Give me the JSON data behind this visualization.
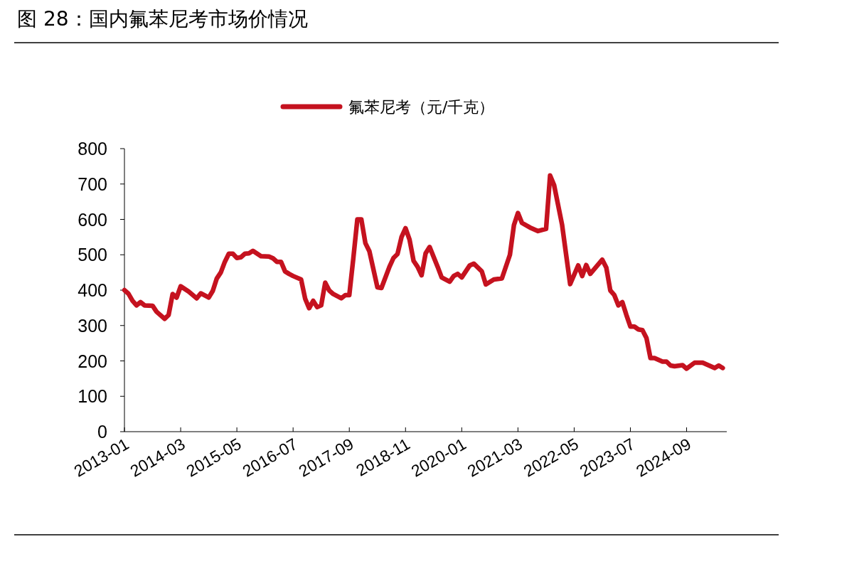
{
  "chart_data": {
    "type": "line",
    "title": "图 28：国内氟苯尼考市场价情况",
    "x": [
      "2013-01",
      "2013-02",
      "2013-03",
      "2013-04",
      "2013-05",
      "2013-06",
      "2013-08",
      "2013-09",
      "2013-11",
      "2013-12",
      "2014-01",
      "2014-02",
      "2014-03",
      "2014-05",
      "2014-07",
      "2014-08",
      "2014-10",
      "2014-11",
      "2014-12",
      "2015-01",
      "2015-02",
      "2015-03",
      "2015-04",
      "2015-05",
      "2015-06",
      "2015-07",
      "2015-08",
      "2015-09",
      "2015-11",
      "2016-01",
      "2016-02",
      "2016-03",
      "2016-04",
      "2016-05",
      "2016-06",
      "2016-07",
      "2016-09",
      "2016-10",
      "2016-11",
      "2016-12",
      "2017-01",
      "2017-02",
      "2017-03",
      "2017-04",
      "2017-05",
      "2017-07",
      "2017-08",
      "2017-09",
      "2017-10",
      "2017-11",
      "2017-12",
      "2018-01",
      "2018-02",
      "2018-04",
      "2018-05",
      "2018-07",
      "2018-08",
      "2018-09",
      "2018-10",
      "2018-11",
      "2018-12",
      "2019-01",
      "2019-02",
      "2019-03",
      "2019-04",
      "2019-05",
      "2019-07",
      "2019-08",
      "2019-10",
      "2019-11",
      "2019-12",
      "2020-01",
      "2020-03",
      "2020-04",
      "2020-06",
      "2020-07",
      "2020-09",
      "2020-11",
      "2021-01",
      "2021-02",
      "2021-03",
      "2021-04",
      "2021-06",
      "2021-08",
      "2021-10",
      "2021-11",
      "2021-12",
      "2022-02",
      "2022-03",
      "2022-04",
      "2022-06",
      "2022-07",
      "2022-08",
      "2022-09",
      "2022-12",
      "2023-01",
      "2023-02",
      "2023-03",
      "2023-04",
      "2023-05",
      "2023-06",
      "2023-07",
      "2023-08",
      "2023-09",
      "2023-10",
      "2023-11",
      "2023-12",
      "2024-01",
      "2024-03",
      "2024-04",
      "2024-05",
      "2024-06",
      "2024-08",
      "2024-09",
      "2024-11",
      "2025-01",
      "2025-03",
      "2025-04",
      "2025-05",
      "2025-06"
    ],
    "series": [
      {
        "name": "氟苯尼考（元/千克）",
        "color": "#c5121f",
        "values": [
          400,
          390,
          370,
          357,
          366,
          357,
          356,
          339,
          319,
          330,
          389,
          379,
          411,
          396,
          377,
          391,
          379,
          398,
          433,
          450,
          480,
          503,
          503,
          491,
          493,
          503,
          504,
          511,
          496,
          495,
          490,
          480,
          480,
          453,
          446,
          440,
          430,
          376,
          349,
          370,
          352,
          357,
          421,
          399,
          389,
          377,
          386,
          386,
          490,
          600,
          600,
          533,
          510,
          408,
          406,
          466,
          491,
          502,
          550,
          575,
          543,
          483,
          466,
          442,
          504,
          522,
          466,
          436,
          424,
          440,
          446,
          436,
          470,
          475,
          453,
          416,
          430,
          433,
          500,
          584,
          618,
          590,
          577,
          567,
          573,
          724,
          697,
          584,
          500,
          417,
          470,
          440,
          471,
          446,
          486,
          464,
          399,
          386,
          357,
          366,
          330,
          297,
          297,
          289,
          287,
          265,
          208,
          208,
          198,
          198,
          187,
          185,
          188,
          178,
          195,
          195,
          185,
          180,
          187,
          180
        ]
      }
    ],
    "xlim": [
      "2013-01",
      "2025-07"
    ],
    "xticks": [
      "2013-01",
      "2014-03",
      "2015-05",
      "2016-07",
      "2017-09",
      "2018-11",
      "2020-01",
      "2021-03",
      "2022-05",
      "2023-07",
      "2024-09"
    ],
    "ylim": [
      0,
      800
    ],
    "yticks": [
      0,
      100,
      200,
      300,
      400,
      500,
      600,
      700,
      800
    ],
    "grid": false,
    "legend": "top",
    "marker": "none",
    "line_style": "solid"
  }
}
